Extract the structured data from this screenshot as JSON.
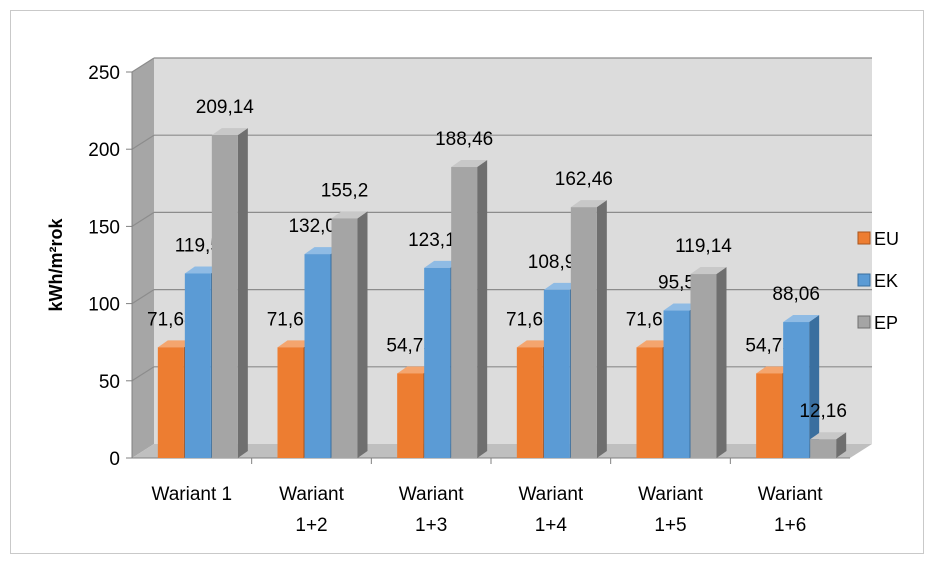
{
  "chart_data": {
    "type": "bar",
    "categories": [
      [
        "Wariant 1"
      ],
      [
        "Wariant",
        "1+2"
      ],
      [
        "Wariant",
        "1+3"
      ],
      [
        "Wariant",
        "1+4"
      ],
      [
        "Wariant",
        "1+5"
      ],
      [
        "Wariant",
        "1+6"
      ]
    ],
    "series": [
      {
        "name": "EU",
        "color": "#ed7d31",
        "side": "#a9551d",
        "top": "#f4a56e",
        "values": [
          71.68,
          71.68,
          54.75,
          71.68,
          71.68,
          54.75
        ],
        "labels": [
          "71,68",
          "71,68",
          "54,75",
          "71,68",
          "71,68",
          "54,75"
        ]
      },
      {
        "name": "EK",
        "color": "#5b9bd5",
        "side": "#3a6f9f",
        "top": "#8fbbe4",
        "values": [
          119.5,
          132.05,
          123.13,
          108.91,
          95.5,
          88.06
        ],
        "labels": [
          "119,5",
          "132,05",
          "123,13",
          "108,91",
          "95,5",
          "88,06"
        ]
      },
      {
        "name": "EP",
        "color": "#a5a5a5",
        "side": "#6f6f6f",
        "top": "#c8c8c8",
        "values": [
          209.14,
          155.2,
          188.46,
          162.46,
          119.14,
          12.16
        ],
        "labels": [
          "209,14",
          "155,2",
          "188,46",
          "162,46",
          "119,14",
          "12,16"
        ]
      }
    ],
    "ylabel": "kWh/m²rok",
    "xlabel": "",
    "ylim": [
      0,
      250
    ],
    "yticks": [
      "0",
      "50",
      "100",
      "150",
      "200",
      "250"
    ],
    "grid": true,
    "legend": "right",
    "style": "3d-column"
  }
}
